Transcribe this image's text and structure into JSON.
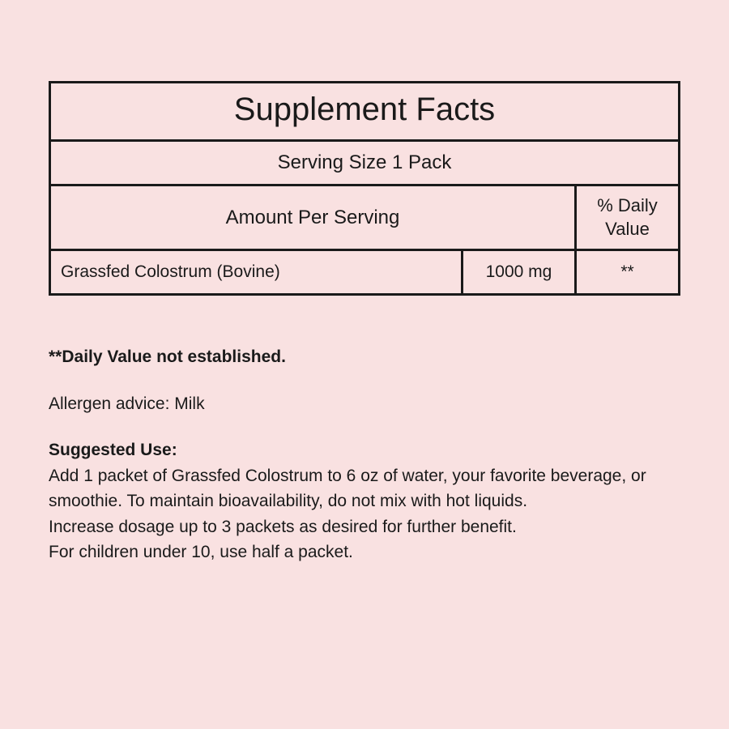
{
  "facts": {
    "title": "Supplement Facts",
    "serving_size": "Serving Size 1 Pack",
    "header_amount": "Amount Per Serving",
    "header_dv": "% Daily Value",
    "rows": [
      {
        "name": "Grassfed Colostrum (Bovine)",
        "amount": "1000 mg",
        "dv": "**"
      }
    ]
  },
  "notes": {
    "dv_note": "**Daily Value not established.",
    "allergen": "Allergen advice: Milk",
    "suggested_label": "Suggested Use:",
    "suggested_text": "Add 1 packet of Grassfed Colostrum to 6 oz of water, your favorite beverage, or smoothie. To maintain bioavailability, do not mix with hot liquids.\nIncrease dosage up to 3 packets as desired for further benefit.\nFor children under 10, use half a packet."
  },
  "colors": {
    "background": "#f9e1e1",
    "text": "#1a1a1a",
    "border": "#1a1a1a"
  }
}
